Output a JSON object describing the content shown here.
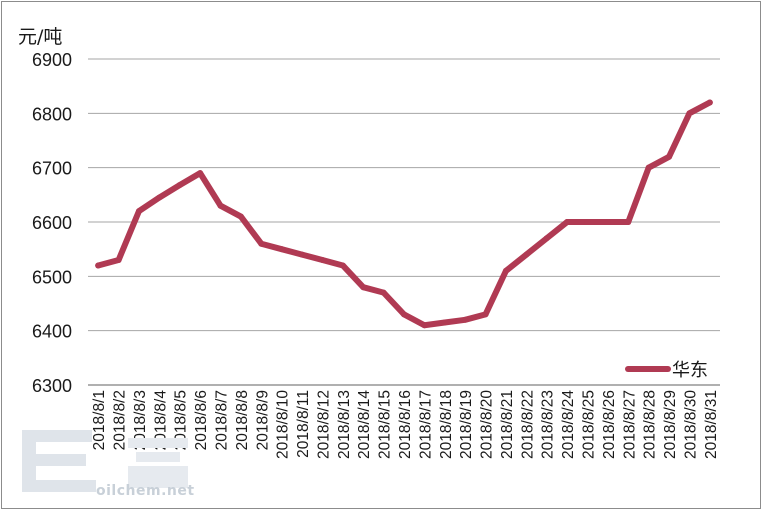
{
  "chart_data": {
    "type": "line",
    "ylabel": "元/吨",
    "ylim": [
      6300,
      6900
    ],
    "yticks": [
      6300,
      6400,
      6500,
      6600,
      6700,
      6800,
      6900
    ],
    "categories": [
      "2018/8/1",
      "2018/8/2",
      "2018/8/3",
      "2018/8/4",
      "2018/8/5",
      "2018/8/6",
      "2018/8/7",
      "2018/8/8",
      "2018/8/9",
      "2018/8/10",
      "2018/8/11",
      "2018/8/12",
      "2018/8/13",
      "2018/8/14",
      "2018/8/15",
      "2018/8/16",
      "2018/8/17",
      "2018/8/18",
      "2018/8/19",
      "2018/8/20",
      "2018/8/21",
      "2018/8/22",
      "2018/8/23",
      "2018/8/24",
      "2018/8/25",
      "2018/8/26",
      "2018/8/27",
      "2018/8/28",
      "2018/8/29",
      "2018/8/30",
      "2018/8/31"
    ],
    "series": [
      {
        "name": "华东",
        "color": "#b03a53",
        "values": [
          6520,
          6530,
          6620,
          6645,
          6668,
          6690,
          6630,
          6610,
          6560,
          6550,
          6540,
          6530,
          6520,
          6480,
          6470,
          6430,
          6410,
          6415,
          6420,
          6430,
          6510,
          6540,
          6570,
          6600,
          6600,
          6600,
          6600,
          6700,
          6720,
          6800,
          6820
        ]
      }
    ],
    "grid": true,
    "legend": "bottom-right"
  },
  "watermark": {
    "text": "oilchem.net",
    "color": "#c8d0d8"
  }
}
